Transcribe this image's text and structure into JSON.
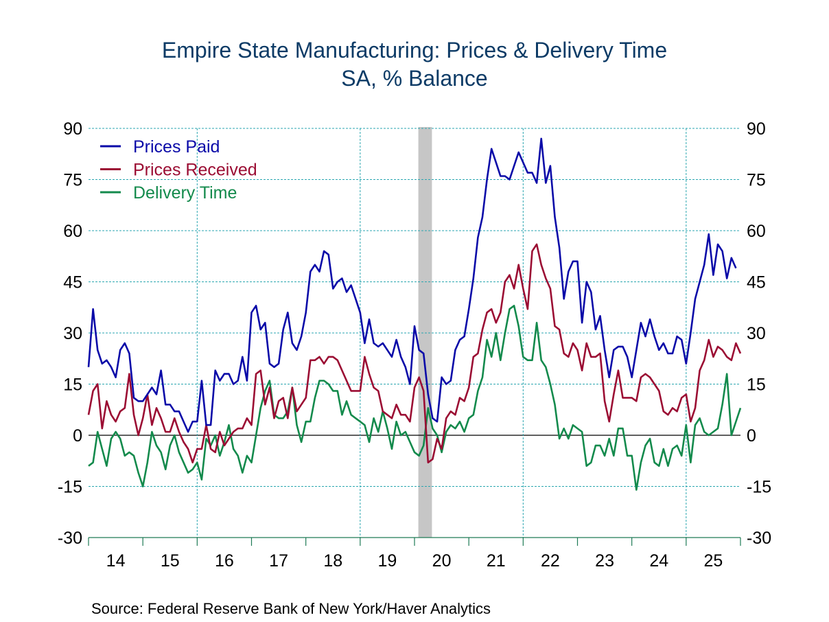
{
  "chart_data": {
    "type": "line",
    "title": "Empire State Manufacturing: Prices & Delivery Time",
    "subtitle": "SA, % Balance",
    "xlabel": "",
    "ylabel": "",
    "ylim": [
      -30,
      90
    ],
    "y_ticks": [
      90,
      75,
      60,
      45,
      30,
      15,
      0,
      -15,
      -30
    ],
    "y_ticks_right": [
      90,
      75,
      60,
      45,
      30,
      15,
      0,
      -15,
      -30
    ],
    "x_tick_labels": [
      "14",
      "15",
      "16",
      "17",
      "18",
      "19",
      "20",
      "21",
      "22",
      "23",
      "24",
      "25"
    ],
    "x_start": "2014-01",
    "x_end": "2025-11",
    "frequency": "monthly",
    "grid": true,
    "vertical_gridlines_at_years": [
      "16",
      "19",
      "22",
      "25"
    ],
    "recession_shading": [
      {
        "start": "2020-02",
        "end": "2020-04"
      }
    ],
    "legend_position": "top-left",
    "series": [
      {
        "name": "Prices Paid",
        "color": "#0a0aa8",
        "values": [
          20,
          37,
          25,
          21,
          22,
          20,
          17,
          25,
          27,
          24,
          11,
          10,
          10,
          12,
          14,
          12,
          19,
          9,
          9,
          7,
          7,
          4,
          1,
          4,
          4,
          16,
          3,
          3,
          19,
          16,
          18,
          18,
          15,
          16,
          23,
          16,
          36,
          38,
          31,
          33,
          21,
          20,
          21,
          31,
          36,
          27,
          25,
          29,
          36,
          48,
          50,
          48,
          54,
          53,
          43,
          45,
          46,
          42,
          44,
          40,
          36,
          27,
          34,
          27,
          26,
          27,
          25,
          23,
          28,
          23,
          20,
          15,
          32,
          25,
          24,
          12,
          5,
          4,
          17,
          15,
          16,
          25,
          28,
          29,
          37,
          46,
          58,
          64,
          75,
          84,
          80,
          76,
          76,
          75,
          79,
          83,
          80,
          77,
          77,
          74,
          87,
          74,
          79,
          64,
          55,
          40,
          48,
          51,
          51,
          33,
          45,
          42,
          31,
          35,
          25,
          17,
          25,
          26,
          26,
          23,
          17,
          25,
          33,
          29,
          34,
          29,
          25,
          27,
          24,
          24,
          29,
          28,
          21,
          30,
          40,
          45,
          50,
          59,
          47,
          56,
          54,
          46,
          52,
          49
        ]
      },
      {
        "name": "Prices Received",
        "color": "#9b0d33",
        "values": [
          6,
          13,
          15,
          2,
          10,
          6,
          4,
          7,
          8,
          18,
          6,
          0,
          5,
          12,
          3,
          8,
          5,
          1,
          1,
          5,
          1,
          -2,
          -4,
          -8,
          -4,
          -4,
          3,
          -4,
          -5,
          1,
          -3,
          -1,
          1,
          2,
          2,
          5,
          3,
          18,
          19,
          9,
          14,
          5,
          10,
          11,
          5,
          14,
          7,
          9,
          11,
          22,
          22,
          23,
          21,
          23,
          23,
          22,
          19,
          16,
          13,
          13,
          13,
          23,
          18,
          14,
          13,
          7,
          6,
          5,
          9,
          6,
          6,
          4,
          14,
          17,
          13,
          -8,
          -7,
          -1,
          -4,
          5,
          7,
          6,
          11,
          10,
          14,
          23,
          24,
          31,
          36,
          37,
          33,
          36,
          45,
          47,
          43,
          50,
          43,
          37,
          54,
          56,
          50,
          46,
          43,
          32,
          31,
          24,
          23,
          27,
          25,
          19,
          27,
          23,
          23,
          24,
          10,
          4,
          12,
          19,
          11,
          11,
          11,
          10,
          17,
          18,
          17,
          15,
          13,
          7,
          6,
          8,
          7,
          11,
          12,
          4,
          8,
          19,
          22,
          28,
          23,
          26,
          25,
          23,
          22,
          27,
          24
        ]
      },
      {
        "name": "Delivery Time",
        "color": "#138a4c",
        "values": [
          -9,
          -8,
          1,
          -4,
          -9,
          -1,
          1,
          -1,
          -6,
          -5,
          -6,
          -11,
          -15,
          -8,
          1,
          -3,
          -5,
          -10,
          -3,
          0,
          -5,
          -8,
          -11,
          -10,
          -8,
          -13,
          -1,
          -3,
          0,
          -6,
          -2,
          3,
          -4,
          -6,
          -11,
          -6,
          -8,
          0,
          8,
          13,
          16,
          6,
          5,
          5,
          7,
          14,
          3,
          -2,
          4,
          4,
          11,
          16,
          16,
          15,
          13,
          13,
          6,
          10,
          6,
          5,
          4,
          3,
          -2,
          5,
          1,
          7,
          2,
          -4,
          4,
          0,
          1,
          -2,
          -5,
          -6,
          -3,
          8,
          2,
          0,
          -5,
          1,
          3,
          2,
          4,
          1,
          5,
          6,
          13,
          17,
          28,
          23,
          30,
          22,
          30,
          37,
          38,
          32,
          23,
          22,
          22,
          33,
          22,
          20,
          15,
          9,
          -1,
          2,
          -1,
          3,
          2,
          1,
          -9,
          -8,
          -3,
          -3,
          -6,
          -1,
          -6,
          2,
          2,
          -6,
          -6,
          -16,
          -8,
          -3,
          -1,
          -8,
          -9,
          -4,
          -9,
          -4,
          -3,
          -6,
          3,
          -8,
          3,
          5,
          1,
          0,
          1,
          2,
          9,
          18,
          0,
          4,
          8
        ]
      }
    ]
  },
  "source": "Source:  Federal Reserve Bank of New York/Haver Analytics"
}
